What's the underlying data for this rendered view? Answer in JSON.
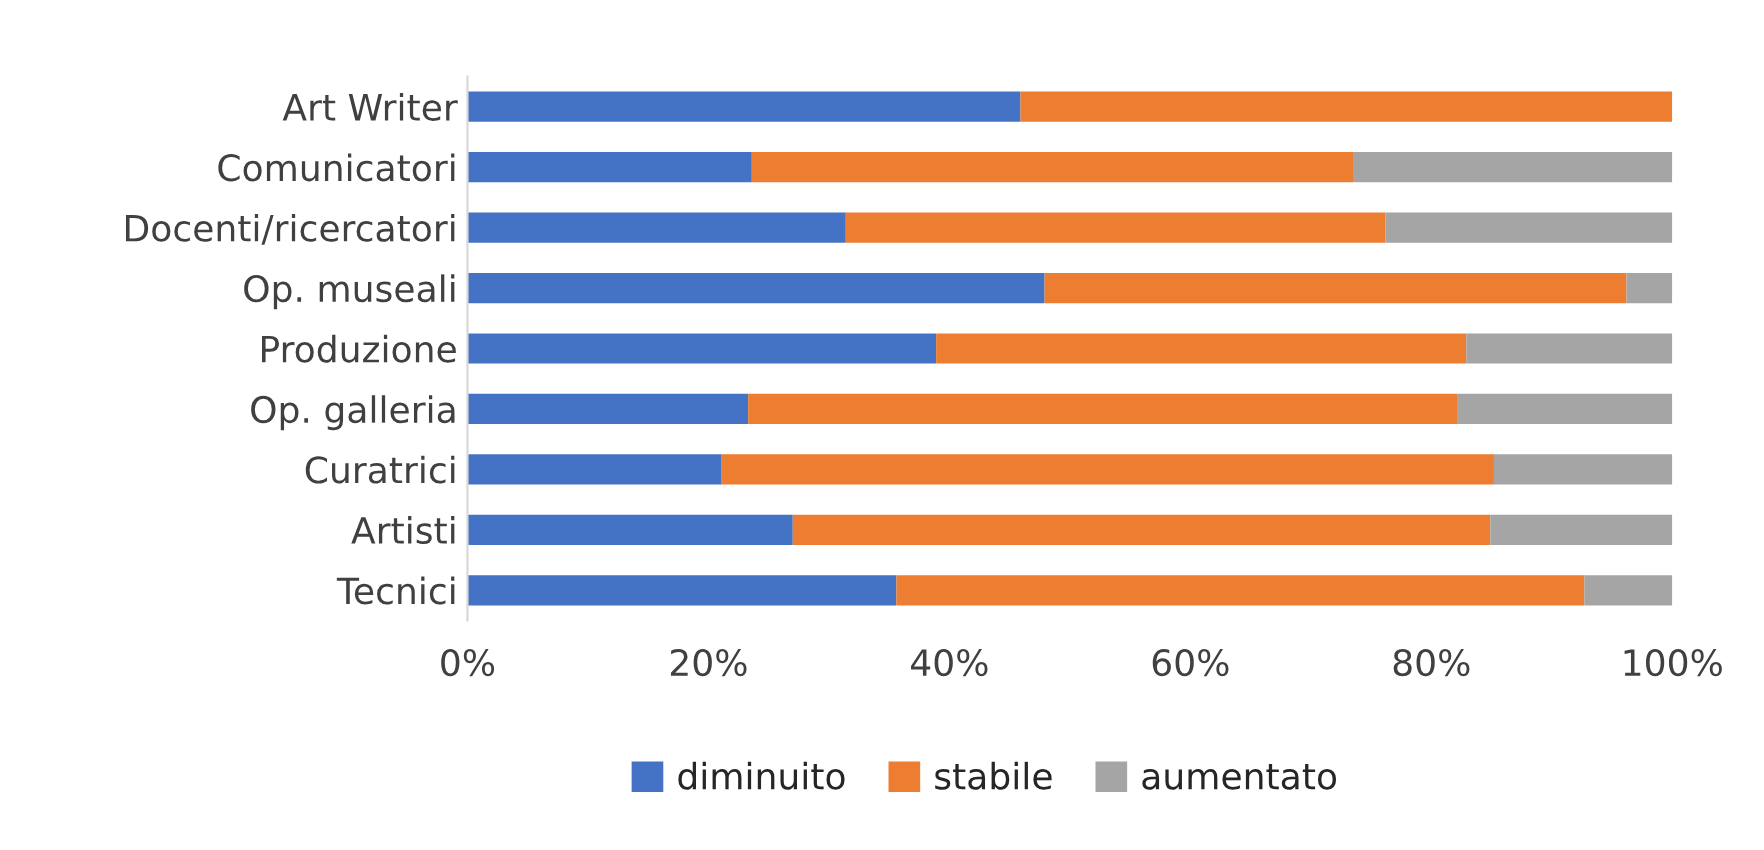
{
  "chart_data": {
    "type": "bar",
    "orientation": "horizontal",
    "stacked": true,
    "categories": [
      "Art Writer",
      "Comunicatori",
      "Docenti/ricercatori",
      "Op. museali",
      "Produzione",
      "Op. galleria",
      "Curatrici",
      "Artisti",
      "Tecnici"
    ],
    "series": [
      {
        "name": "diminuito",
        "color": "#4472c4",
        "values": [
          45.9,
          23.6,
          31.4,
          47.9,
          38.9,
          23.3,
          21.1,
          27.0,
          35.6
        ]
      },
      {
        "name": "stabile",
        "color": "#ed7d31",
        "values": [
          54.1,
          49.9,
          44.8,
          48.3,
          44.0,
          58.9,
          64.1,
          57.9,
          57.1
        ]
      },
      {
        "name": "aumentato",
        "color": "#a5a5a5",
        "values": [
          0,
          26.5,
          23.8,
          3.8,
          17.1,
          17.8,
          14.8,
          15.1,
          7.3
        ]
      }
    ],
    "xlim": [
      0,
      100
    ],
    "xticks": [
      {
        "value": 0,
        "label": "0%"
      },
      {
        "value": 20,
        "label": "20%"
      },
      {
        "value": 40,
        "label": "40%"
      },
      {
        "value": 60,
        "label": "60%"
      },
      {
        "value": 80,
        "label": "80%"
      },
      {
        "value": 100,
        "label": "100%"
      }
    ],
    "grid": false,
    "legend": "bottom"
  }
}
